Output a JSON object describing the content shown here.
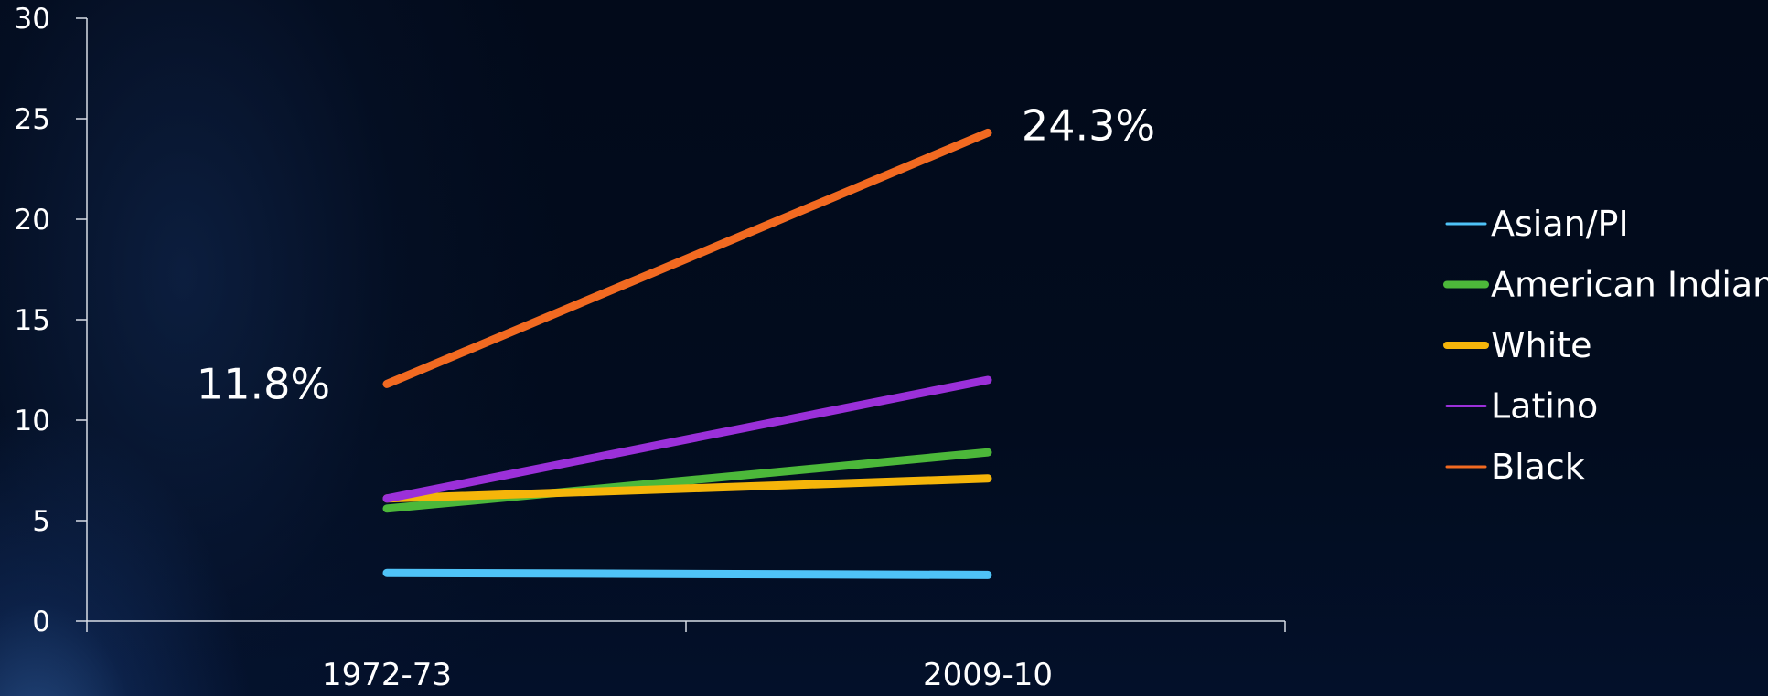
{
  "chart_data": {
    "type": "line",
    "categories": [
      "1972-73",
      "2009-10"
    ],
    "series": [
      {
        "name": "Asian/PI",
        "values": [
          2.4,
          2.3
        ],
        "color": "#4fc3f7",
        "legend_weight": "thin",
        "stroke": "thick"
      },
      {
        "name": "American Indian",
        "values": [
          5.6,
          8.4
        ],
        "color": "#4cb83a",
        "legend_weight": "thick",
        "stroke": "thick"
      },
      {
        "name": "White",
        "values": [
          6.1,
          7.1
        ],
        "color": "#f5b50a",
        "legend_weight": "thick",
        "stroke": "thick"
      },
      {
        "name": "Latino",
        "values": [
          6.1,
          12.0
        ],
        "color": "#9b30d9",
        "legend_weight": "thin",
        "stroke": "thick"
      },
      {
        "name": "Black",
        "values": [
          11.8,
          24.3
        ],
        "color": "#f26a21",
        "legend_weight": "thin",
        "stroke": "thick"
      }
    ],
    "y_ticks": [
      "0",
      "5",
      "10",
      "15",
      "20",
      "25",
      "30"
    ],
    "ylim": [
      0,
      30
    ],
    "annotations": [
      "11.8%",
      "24.3%"
    ],
    "grid": false,
    "legend_position": "right"
  }
}
